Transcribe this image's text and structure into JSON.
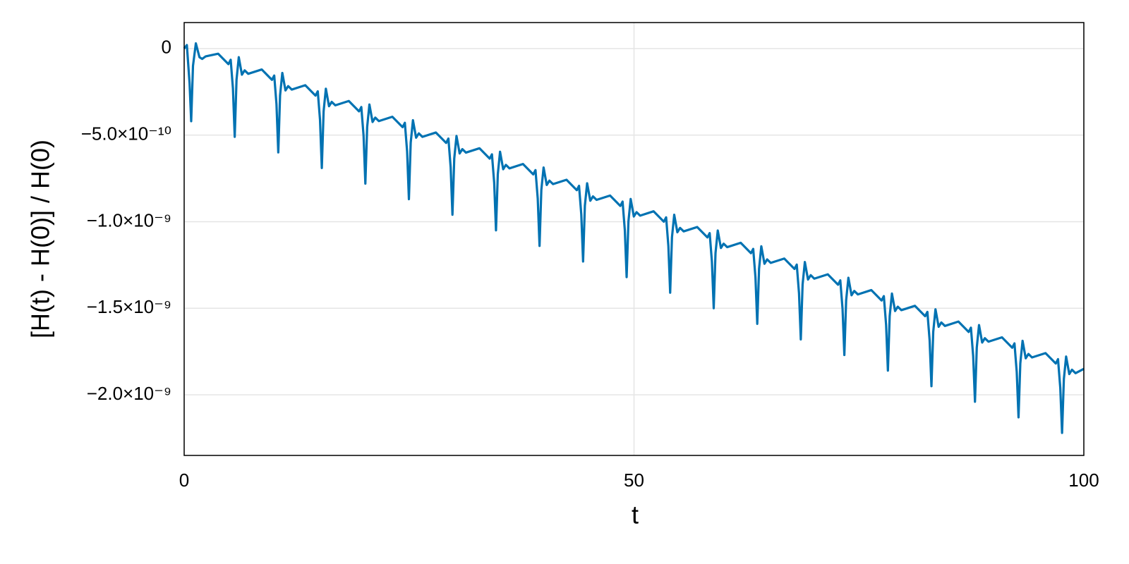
{
  "chart_data": {
    "type": "line",
    "xlabel": "t",
    "ylabel": "[H(t) - H(0)] / H(0)",
    "color": "#0072b2",
    "grid": true,
    "xlim": [
      0,
      100
    ],
    "xticks": [
      0,
      50,
      100
    ],
    "ylim": [
      1.5e-10,
      -2.35e-09
    ],
    "yticks": [
      0,
      {
        "value": -5e-10,
        "label": "−5.0×10⁻¹⁰"
      },
      {
        "value": -1e-09,
        "label": "−1.0×10⁻⁹"
      },
      {
        "value": -1.5e-09,
        "label": "−1.5×10⁻⁹"
      },
      {
        "value": -2e-09,
        "label": "−2.0×10⁻⁹"
      }
    ],
    "x": [
      0,
      0.3,
      0.6,
      0.78,
      0.98,
      1.3,
      1.7,
      2.0,
      2.4,
      3.78,
      4.92,
      5.17,
      5.42,
      5.62,
      5.82,
      6.07,
      6.42,
      6.72,
      7.12,
      8.62,
      9.76,
      10.01,
      10.26,
      10.46,
      10.66,
      10.91,
      11.26,
      11.56,
      11.96,
      13.46,
      14.6,
      14.85,
      15.1,
      15.3,
      15.5,
      15.75,
      16.1,
      16.4,
      16.8,
      18.3,
      19.44,
      19.69,
      19.94,
      20.14,
      20.34,
      20.59,
      20.94,
      21.24,
      21.64,
      23.14,
      24.28,
      24.53,
      24.78,
      24.98,
      25.18,
      25.43,
      25.78,
      26.08,
      26.48,
      27.98,
      29.12,
      29.37,
      29.62,
      29.82,
      30.02,
      30.27,
      30.62,
      30.92,
      31.32,
      32.82,
      33.96,
      34.21,
      34.46,
      34.66,
      34.86,
      35.11,
      35.46,
      35.76,
      36.16,
      37.66,
      38.8,
      39.05,
      39.3,
      39.5,
      39.7,
      39.95,
      40.3,
      40.6,
      41.0,
      42.5,
      43.64,
      43.89,
      44.14,
      44.34,
      44.54,
      44.79,
      45.14,
      45.44,
      45.84,
      47.34,
      48.48,
      48.73,
      48.98,
      49.18,
      49.38,
      49.63,
      49.98,
      50.28,
      50.68,
      52.18,
      53.32,
      53.57,
      53.82,
      54.02,
      54.22,
      54.47,
      54.82,
      55.12,
      55.52,
      57.02,
      58.16,
      58.41,
      58.66,
      58.86,
      59.06,
      59.31,
      59.66,
      59.96,
      60.36,
      61.86,
      63.0,
      63.25,
      63.5,
      63.7,
      63.9,
      64.15,
      64.5,
      64.8,
      65.2,
      66.7,
      67.84,
      68.09,
      68.34,
      68.54,
      68.74,
      68.99,
      69.34,
      69.64,
      70.04,
      71.54,
      72.68,
      72.93,
      73.18,
      73.38,
      73.58,
      73.83,
      74.18,
      74.48,
      74.88,
      76.38,
      77.52,
      77.77,
      78.02,
      78.22,
      78.42,
      78.67,
      79.02,
      79.32,
      79.72,
      81.22,
      82.36,
      82.61,
      82.86,
      83.06,
      83.26,
      83.51,
      83.86,
      84.16,
      84.56,
      86.06,
      87.2,
      87.45,
      87.7,
      87.9,
      88.1,
      88.35,
      88.7,
      89.0,
      89.4,
      90.9,
      92.04,
      92.29,
      92.54,
      92.74,
      92.94,
      93.19,
      93.54,
      93.84,
      94.24,
      95.74,
      96.88,
      97.13,
      97.38,
      97.58,
      97.78,
      98.03,
      98.38,
      98.68,
      99.08,
      100
    ],
    "values": [
      0,
      2e-11,
      -2e-10,
      -4.2e-10,
      -1e-10,
      3e-11,
      -5e-11,
      -6e-11,
      -4.5e-11,
      -3e-11,
      -9e-11,
      -6.5e-11,
      -2.3e-10,
      -5.1e-10,
      -1.8e-10,
      -5e-11,
      -1.51e-10,
      -1.26e-10,
      -1.46e-10,
      -1.21e-10,
      -1.81e-10,
      -1.56e-10,
      -3.21e-10,
      -6e-10,
      -2.71e-10,
      -1.41e-10,
      -2.42e-10,
      -2.17e-10,
      -2.37e-10,
      -2.12e-10,
      -2.72e-10,
      -2.47e-10,
      -4.12e-10,
      -6.9e-10,
      -3.62e-10,
      -2.32e-10,
      -3.33e-10,
      -3.08e-10,
      -3.28e-10,
      -3.03e-10,
      -3.63e-10,
      -3.38e-10,
      -5.03e-10,
      -7.8e-10,
      -4.53e-10,
      -3.23e-10,
      -4.24e-10,
      -3.99e-10,
      -4.19e-10,
      -3.94e-10,
      -4.54e-10,
      -4.29e-10,
      -5.94e-10,
      -8.7e-10,
      -5.44e-10,
      -4.14e-10,
      -5.15e-10,
      -4.9e-10,
      -5.1e-10,
      -4.85e-10,
      -5.45e-10,
      -5.2e-10,
      -6.85e-10,
      -9.6e-10,
      -6.35e-10,
      -5.05e-10,
      -6.06e-10,
      -5.81e-10,
      -6.01e-10,
      -5.76e-10,
      -6.36e-10,
      -6.11e-10,
      -7.76e-10,
      -1.05e-09,
      -7.26e-10,
      -5.96e-10,
      -6.97e-10,
      -6.72e-10,
      -6.92e-10,
      -6.67e-10,
      -7.27e-10,
      -7.02e-10,
      -8.67e-10,
      -1.14e-09,
      -8.17e-10,
      -6.87e-10,
      -7.88e-10,
      -7.63e-10,
      -7.83e-10,
      -7.58e-10,
      -8.18e-10,
      -7.93e-10,
      -9.58e-10,
      -1.23e-09,
      -9.08e-10,
      -7.78e-10,
      -8.79e-10,
      -8.54e-10,
      -8.74e-10,
      -8.49e-10,
      -9.09e-10,
      -8.84e-10,
      -1.049e-09,
      -1.32e-09,
      -9.99e-10,
      -8.69e-10,
      -9.7e-10,
      -9.45e-10,
      -9.65e-10,
      -9.4e-10,
      -1e-09,
      -9.75e-10,
      -1.14e-09,
      -1.41e-09,
      -1.09e-09,
      -9.6e-10,
      -1.061e-09,
      -1.036e-09,
      -1.056e-09,
      -1.031e-09,
      -1.091e-09,
      -1.066e-09,
      -1.231e-09,
      -1.5e-09,
      -1.181e-09,
      -1.051e-09,
      -1.152e-09,
      -1.127e-09,
      -1.147e-09,
      -1.122e-09,
      -1.182e-09,
      -1.157e-09,
      -1.322e-09,
      -1.59e-09,
      -1.272e-09,
      -1.142e-09,
      -1.243e-09,
      -1.218e-09,
      -1.238e-09,
      -1.213e-09,
      -1.273e-09,
      -1.248e-09,
      -1.413e-09,
      -1.68e-09,
      -1.363e-09,
      -1.233e-09,
      -1.334e-09,
      -1.309e-09,
      -1.329e-09,
      -1.304e-09,
      -1.364e-09,
      -1.339e-09,
      -1.504e-09,
      -1.77e-09,
      -1.454e-09,
      -1.324e-09,
      -1.425e-09,
      -1.4e-09,
      -1.42e-09,
      -1.395e-09,
      -1.455e-09,
      -1.43e-09,
      -1.595e-09,
      -1.86e-09,
      -1.545e-09,
      -1.415e-09,
      -1.516e-09,
      -1.491e-09,
      -1.511e-09,
      -1.486e-09,
      -1.546e-09,
      -1.521e-09,
      -1.686e-09,
      -1.95e-09,
      -1.636e-09,
      -1.506e-09,
      -1.607e-09,
      -1.582e-09,
      -1.602e-09,
      -1.577e-09,
      -1.637e-09,
      -1.612e-09,
      -1.777e-09,
      -2.04e-09,
      -1.727e-09,
      -1.597e-09,
      -1.698e-09,
      -1.673e-09,
      -1.693e-09,
      -1.668e-09,
      -1.728e-09,
      -1.703e-09,
      -1.868e-09,
      -2.13e-09,
      -1.818e-09,
      -1.688e-09,
      -1.789e-09,
      -1.764e-09,
      -1.784e-09,
      -1.759e-09,
      -1.819e-09,
      -1.794e-09,
      -1.959e-09,
      -2.22e-09,
      -1.909e-09,
      -1.779e-09,
      -1.88e-09,
      -1.855e-09,
      -1.875e-09,
      -1.85e-09
    ]
  }
}
